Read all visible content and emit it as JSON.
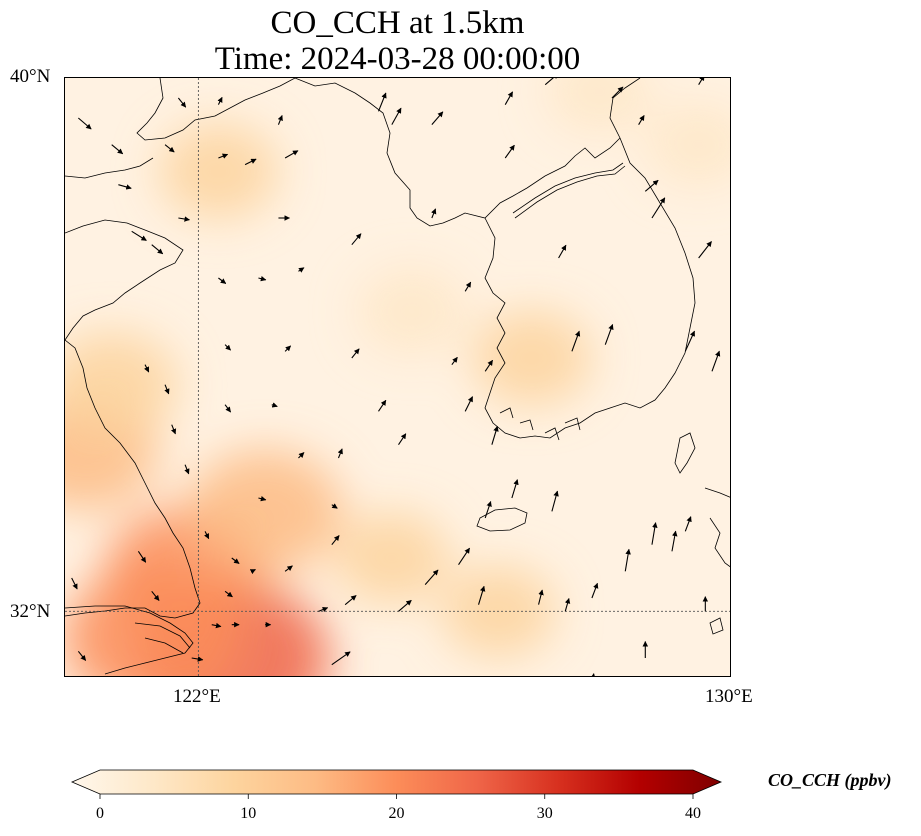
{
  "title_line1": "CO_CCH at 1.5km",
  "title_line2": "Time: 2024-03-28 00:00:00",
  "axes": {
    "lat_ticks": [
      "40°N",
      "32°N"
    ],
    "lon_ticks": [
      "122°E",
      "130°E"
    ]
  },
  "extent": {
    "lon": [
      120,
      130
    ],
    "lat": [
      31,
      40
    ]
  },
  "colorbar": {
    "label": "CO_CCH (ppbv)",
    "ticks": [
      "0",
      "10",
      "20",
      "30",
      "40"
    ],
    "range": [
      0,
      40
    ],
    "extend": "both",
    "colormap": "OrRd",
    "colors": [
      "#fff7ec",
      "#fee8c8",
      "#fdd49e",
      "#fdbb84",
      "#fc8d59",
      "#ef6548",
      "#d7301f",
      "#b30000",
      "#7f0000"
    ]
  },
  "field": {
    "variable": "CO_CCH",
    "level": "1.5km",
    "hotspots": [
      {
        "lon": 122.5,
        "lat": 31.3,
        "value": 26
      },
      {
        "lon": 121.3,
        "lat": 31.6,
        "value": 22
      },
      {
        "lon": 121.8,
        "lat": 32.6,
        "value": 18
      },
      {
        "lon": 123.0,
        "lat": 33.5,
        "value": 17
      },
      {
        "lon": 120.3,
        "lat": 34.4,
        "value": 15
      },
      {
        "lon": 120.7,
        "lat": 35.4,
        "value": 12
      },
      {
        "lon": 122.3,
        "lat": 38.6,
        "value": 9
      },
      {
        "lon": 126.5,
        "lat": 32.0,
        "value": 8
      },
      {
        "lon": 124.9,
        "lat": 32.8,
        "value": 8
      },
      {
        "lon": 127.0,
        "lat": 35.8,
        "value": 9
      },
      {
        "lon": 125.2,
        "lat": 36.5,
        "value": 7
      },
      {
        "lon": 129.5,
        "lat": 39.0,
        "value": 6
      },
      {
        "lon": 128.0,
        "lat": 39.8,
        "value": 6
      }
    ]
  },
  "wind_vectors": [
    [
      120.2,
      39.4,
      0.35,
      -0.3
    ],
    [
      120.7,
      39.0,
      0.3,
      -0.25
    ],
    [
      120.8,
      38.4,
      0.35,
      -0.1
    ],
    [
      121.5,
      39.0,
      0.25,
      -0.2
    ],
    [
      121.7,
      39.7,
      0.2,
      -0.25
    ],
    [
      121.7,
      37.9,
      0.3,
      -0.05
    ],
    [
      121.0,
      37.7,
      0.4,
      -0.25
    ],
    [
      121.3,
      37.5,
      0.3,
      -0.25
    ],
    [
      122.3,
      39.6,
      0.1,
      0.2
    ],
    [
      122.3,
      38.8,
      0.25,
      0.1
    ],
    [
      122.7,
      38.7,
      0.3,
      0.15
    ],
    [
      123.2,
      39.3,
      0.1,
      0.25
    ],
    [
      123.3,
      38.8,
      0.35,
      0.2
    ],
    [
      123.2,
      37.9,
      0.3,
      0.0
    ],
    [
      122.3,
      37.0,
      0.2,
      -0.15
    ],
    [
      122.9,
      37.0,
      0.2,
      -0.05
    ],
    [
      123.5,
      37.1,
      0.15,
      0.1
    ],
    [
      124.3,
      37.5,
      0.25,
      0.3
    ],
    [
      124.7,
      39.5,
      0.2,
      0.5
    ],
    [
      124.9,
      39.3,
      0.25,
      0.45
    ],
    [
      125.5,
      39.3,
      0.3,
      0.35
    ],
    [
      125.5,
      37.9,
      0.1,
      0.25
    ],
    [
      126.0,
      36.8,
      0.15,
      0.25
    ],
    [
      126.6,
      39.6,
      0.2,
      0.35
    ],
    [
      126.6,
      38.8,
      0.25,
      0.35
    ],
    [
      127.2,
      39.9,
      0.35,
      0.3
    ],
    [
      128.2,
      39.7,
      0.3,
      0.3
    ],
    [
      128.6,
      39.3,
      0.15,
      0.25
    ],
    [
      128.7,
      38.3,
      0.35,
      0.3
    ],
    [
      128.8,
      37.9,
      0.35,
      0.55
    ],
    [
      129.5,
      39.9,
      0.15,
      0.25
    ],
    [
      129.5,
      37.3,
      0.35,
      0.45
    ],
    [
      127.4,
      37.3,
      0.2,
      0.35
    ],
    [
      127.6,
      35.9,
      0.2,
      0.55
    ],
    [
      128.1,
      36.0,
      0.2,
      0.55
    ],
    [
      129.3,
      35.9,
      0.25,
      0.55
    ],
    [
      129.7,
      35.6,
      0.2,
      0.55
    ],
    [
      122.4,
      36.0,
      0.15,
      -0.15
    ],
    [
      121.2,
      35.7,
      0.1,
      -0.2
    ],
    [
      121.5,
      35.4,
      0.1,
      -0.25
    ],
    [
      122.4,
      35.1,
      0.15,
      -0.2
    ],
    [
      123.1,
      35.1,
      0.15,
      -0.05
    ],
    [
      121.6,
      34.8,
      0.1,
      -0.25
    ],
    [
      121.8,
      34.2,
      0.1,
      -0.25
    ],
    [
      123.3,
      35.9,
      0.15,
      0.15
    ],
    [
      124.3,
      35.8,
      0.2,
      0.25
    ],
    [
      125.8,
      35.7,
      0.15,
      0.2
    ],
    [
      124.7,
      35.0,
      0.2,
      0.3
    ],
    [
      125.0,
      34.5,
      0.2,
      0.3
    ],
    [
      126.3,
      35.6,
      0.2,
      0.3
    ],
    [
      126.0,
      35.0,
      0.2,
      0.4
    ],
    [
      126.4,
      34.5,
      0.15,
      0.5
    ],
    [
      126.3,
      33.4,
      0.15,
      0.45
    ],
    [
      123.5,
      34.3,
      0.15,
      0.15
    ],
    [
      124.1,
      34.3,
      0.1,
      0.25
    ],
    [
      124.0,
      33.6,
      0.15,
      -0.1
    ],
    [
      122.9,
      33.7,
      0.2,
      -0.05
    ],
    [
      122.1,
      33.2,
      0.1,
      -0.2
    ],
    [
      122.5,
      32.8,
      0.2,
      -0.15
    ],
    [
      123.3,
      32.6,
      0.2,
      0.15
    ],
    [
      121.1,
      32.9,
      0.2,
      -0.3
    ],
    [
      121.3,
      32.3,
      0.2,
      -0.25
    ],
    [
      122.4,
      32.3,
      0.2,
      -0.15
    ],
    [
      122.8,
      32.6,
      0.1,
      0.05
    ],
    [
      124.0,
      33.0,
      0.2,
      0.25
    ],
    [
      120.1,
      32.5,
      0.15,
      -0.3
    ],
    [
      120.2,
      31.4,
      0.2,
      -0.25
    ],
    [
      122.5,
      31.8,
      0.2,
      0.0
    ],
    [
      123.0,
      31.8,
      0.15,
      0.0
    ],
    [
      123.8,
      32.0,
      0.25,
      0.1
    ],
    [
      124.2,
      32.1,
      0.3,
      0.25
    ],
    [
      125.0,
      32.0,
      0.35,
      0.3
    ],
    [
      125.4,
      32.4,
      0.35,
      0.4
    ],
    [
      125.9,
      32.7,
      0.3,
      0.45
    ],
    [
      126.7,
      33.7,
      0.15,
      0.5
    ],
    [
      127.3,
      33.5,
      0.15,
      0.55
    ],
    [
      126.2,
      32.1,
      0.15,
      0.5
    ],
    [
      127.1,
      32.1,
      0.1,
      0.4
    ],
    [
      127.5,
      32.0,
      0.1,
      0.35
    ],
    [
      127.9,
      32.2,
      0.15,
      0.4
    ],
    [
      128.4,
      32.6,
      0.1,
      0.6
    ],
    [
      128.8,
      33.0,
      0.1,
      0.6
    ],
    [
      129.1,
      32.9,
      0.1,
      0.55
    ],
    [
      129.3,
      33.2,
      0.15,
      0.4
    ],
    [
      129.6,
      32.0,
      0.0,
      0.4
    ],
    [
      128.7,
      31.3,
      0.0,
      0.45
    ],
    [
      127.9,
      30.9,
      0.05,
      0.3
    ],
    [
      124.0,
      31.2,
      0.5,
      0.35
    ],
    [
      121.9,
      31.3,
      0.3,
      -0.05
    ],
    [
      122.2,
      31.8,
      0.25,
      -0.05
    ]
  ]
}
